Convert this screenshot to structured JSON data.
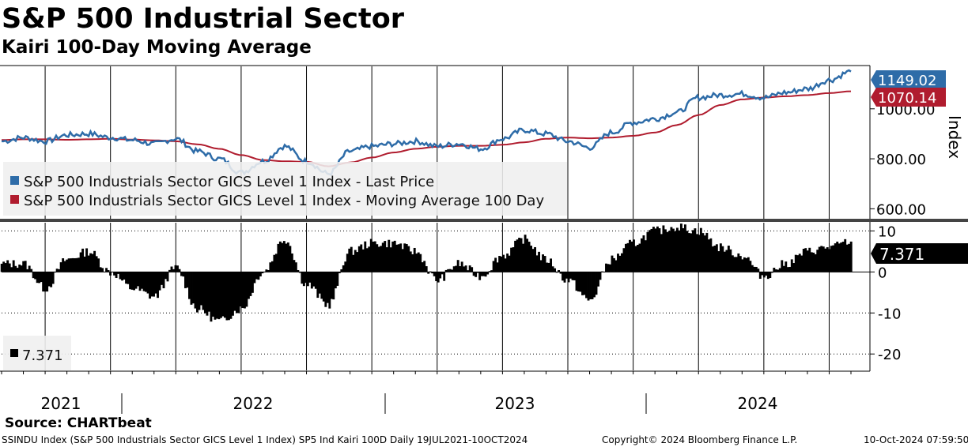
{
  "header": {
    "title": "S&P 500 Industrial Sector",
    "subtitle": "Kairi 100-Day Moving Average"
  },
  "source": "Source: CHARTbeat",
  "footer": {
    "description": "SSINDU Index (S&P 500 Industrials Sector GICS Level 1 Index) SP5 Ind Kairi 100D  Daily 19JUL2021-10OCT2024",
    "copyright": "Copyright© 2024 Bloomberg Finance L.P.",
    "timestamp": "10-Oct-2024 07:59:50"
  },
  "colors": {
    "price": "#2e6ca8",
    "ma": "#b01c2e",
    "kairi": "#000000",
    "grid": "#000000",
    "divider": "#444444"
  },
  "chart_data": [
    {
      "type": "line",
      "name": "price-panel",
      "ylabel": "Index",
      "ylim": [
        560,
        1170
      ],
      "yticks": [
        "1000.00",
        "800.00",
        "600.00"
      ],
      "ytick_values": [
        1000,
        800,
        600
      ],
      "x_years": [
        "2021",
        "2022",
        "2023",
        "2024"
      ],
      "legend": [
        "S&P 500 Industrials Sector GICS Level 1 Index - Last Price",
        "S&P 500 Industrials Sector GICS Level 1 Index - Moving Average 100 Day"
      ],
      "last_values": {
        "price": "1149.02",
        "ma": "1070.14"
      },
      "series": [
        {
          "name": "Last Price",
          "x": [
            "2021-07",
            "2021-08",
            "2021-09",
            "2021-10",
            "2021-11",
            "2021-12",
            "2022-01",
            "2022-02",
            "2022-03",
            "2022-04",
            "2022-05",
            "2022-06",
            "2022-07",
            "2022-08",
            "2022-09",
            "2022-10",
            "2022-11",
            "2022-12",
            "2023-01",
            "2023-02",
            "2023-03",
            "2023-04",
            "2023-05",
            "2023-06",
            "2023-07",
            "2023-08",
            "2023-09",
            "2023-10",
            "2023-11",
            "2023-12",
            "2024-01",
            "2024-02",
            "2024-03",
            "2024-04",
            "2024-05",
            "2024-06",
            "2024-07",
            "2024-08",
            "2024-09",
            "2024-10"
          ],
          "values": [
            870,
            885,
            870,
            895,
            900,
            885,
            875,
            860,
            880,
            830,
            800,
            745,
            790,
            850,
            790,
            740,
            830,
            850,
            860,
            870,
            850,
            860,
            840,
            880,
            915,
            900,
            870,
            845,
            905,
            945,
            960,
            985,
            1045,
            1055,
            1060,
            1045,
            1065,
            1080,
            1115,
            1149
          ]
        },
        {
          "name": "Moving Average 100 Day",
          "x": [
            "2021-07",
            "2021-08",
            "2021-09",
            "2021-10",
            "2021-11",
            "2021-12",
            "2022-01",
            "2022-02",
            "2022-03",
            "2022-04",
            "2022-05",
            "2022-06",
            "2022-07",
            "2022-08",
            "2022-09",
            "2022-10",
            "2022-11",
            "2022-12",
            "2023-01",
            "2023-02",
            "2023-03",
            "2023-04",
            "2023-05",
            "2023-06",
            "2023-07",
            "2023-08",
            "2023-09",
            "2023-10",
            "2023-11",
            "2023-12",
            "2024-01",
            "2024-02",
            "2024-03",
            "2024-04",
            "2024-05",
            "2024-06",
            "2024-07",
            "2024-08",
            "2024-09",
            "2024-10"
          ],
          "values": [
            875,
            878,
            878,
            876,
            878,
            880,
            877,
            874,
            870,
            858,
            840,
            815,
            795,
            790,
            788,
            770,
            785,
            805,
            825,
            840,
            848,
            852,
            852,
            856,
            866,
            880,
            885,
            882,
            885,
            892,
            905,
            935,
            975,
            1015,
            1038,
            1045,
            1050,
            1055,
            1063,
            1070
          ]
        }
      ]
    },
    {
      "type": "bar",
      "name": "kairi-panel",
      "ylim": [
        -24,
        12
      ],
      "yticks": [
        "10",
        "0",
        "-10",
        "-20"
      ],
      "ytick_values": [
        10,
        0,
        -10,
        -20
      ],
      "legend": [
        "7.371"
      ],
      "last_value": "7.371",
      "x": [
        "2021-07",
        "2021-08",
        "2021-09",
        "2021-10",
        "2021-11",
        "2021-12",
        "2022-01",
        "2022-02",
        "2022-03",
        "2022-04",
        "2022-05",
        "2022-06",
        "2022-07",
        "2022-08",
        "2022-09",
        "2022-10",
        "2022-11",
        "2022-12",
        "2023-01",
        "2023-02",
        "2023-03",
        "2023-04",
        "2023-05",
        "2023-06",
        "2023-07",
        "2023-08",
        "2023-09",
        "2023-10",
        "2023-11",
        "2023-12",
        "2024-01",
        "2024-02",
        "2024-03",
        "2024-04",
        "2024-05",
        "2024-06",
        "2024-07",
        "2024-08",
        "2024-09",
        "2024-10"
      ],
      "values": [
        2,
        2,
        -4,
        3,
        5,
        0,
        -4,
        -6,
        1,
        -9,
        -12,
        -9,
        0,
        8,
        -3,
        -8,
        5,
        7,
        7,
        5,
        -2,
        2,
        -1,
        4,
        8,
        3,
        -2,
        -7,
        3,
        7,
        10,
        11,
        10,
        6,
        4,
        -1,
        2,
        5,
        6,
        7.4
      ]
    }
  ]
}
